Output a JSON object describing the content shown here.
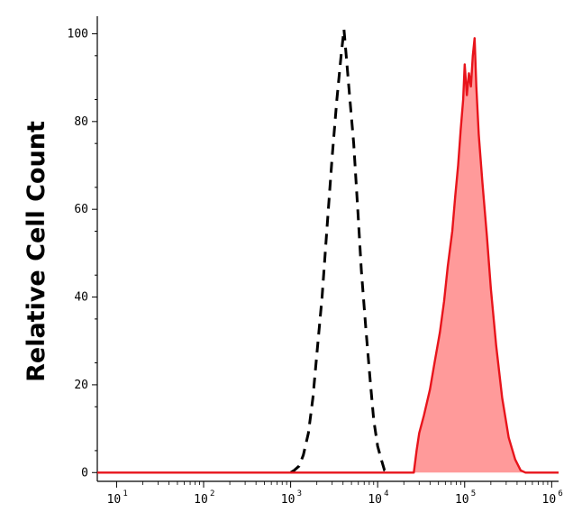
{
  "chart_data": {
    "type": "area",
    "title": "",
    "xlabel": "",
    "ylabel": "Relative Cell Count",
    "x_scale": "log",
    "xlim": [
      6,
      1200000
    ],
    "ylim": [
      -2,
      104
    ],
    "y_ticks": [
      0,
      20,
      40,
      60,
      80,
      100
    ],
    "x_ticks": [
      {
        "base": "10",
        "exp": "1",
        "value": 10
      },
      {
        "base": "10",
        "exp": "2",
        "value": 100
      },
      {
        "base": "10",
        "exp": "3",
        "value": 1000
      },
      {
        "base": "10",
        "exp": "4",
        "value": 10000
      },
      {
        "base": "10",
        "exp": "5",
        "value": 100000
      },
      {
        "base": "10",
        "exp": "6",
        "value": 1000000
      }
    ],
    "grid": false,
    "series": [
      {
        "style": "dashed",
        "color": "#000000",
        "fill": "none",
        "points": [
          [
            1000,
            0
          ],
          [
            1100,
            0.5
          ],
          [
            1250,
            1.5
          ],
          [
            1400,
            4
          ],
          [
            1600,
            9
          ],
          [
            1800,
            17
          ],
          [
            2000,
            27
          ],
          [
            2300,
            40
          ],
          [
            2600,
            55
          ],
          [
            3000,
            72
          ],
          [
            3400,
            85
          ],
          [
            3800,
            95
          ],
          [
            4100,
            101
          ],
          [
            4400,
            94
          ],
          [
            4800,
            85
          ],
          [
            5300,
            75
          ],
          [
            5900,
            60
          ],
          [
            6500,
            46
          ],
          [
            7300,
            33
          ],
          [
            8200,
            21
          ],
          [
            9000,
            12
          ],
          [
            10000,
            6
          ],
          [
            11000,
            3
          ],
          [
            12000,
            0.5
          ],
          [
            13000,
            0
          ]
        ]
      },
      {
        "style": "solid",
        "color": "#e8141b",
        "fill": "#ff9a9a",
        "points": [
          [
            26000,
            0
          ],
          [
            28000,
            5
          ],
          [
            30000,
            9
          ],
          [
            34000,
            13
          ],
          [
            40000,
            19
          ],
          [
            45000,
            25
          ],
          [
            52000,
            32
          ],
          [
            58000,
            39
          ],
          [
            64000,
            47
          ],
          [
            72000,
            55
          ],
          [
            78000,
            63
          ],
          [
            84000,
            70
          ],
          [
            90000,
            78
          ],
          [
            96000,
            85
          ],
          [
            100000,
            93
          ],
          [
            106000,
            86
          ],
          [
            112000,
            91
          ],
          [
            118000,
            88
          ],
          [
            124000,
            95
          ],
          [
            130000,
            99
          ],
          [
            136000,
            88
          ],
          [
            145000,
            77
          ],
          [
            160000,
            66
          ],
          [
            180000,
            54
          ],
          [
            200000,
            42
          ],
          [
            230000,
            29
          ],
          [
            270000,
            17
          ],
          [
            320000,
            8
          ],
          [
            380000,
            3
          ],
          [
            440000,
            0.5
          ],
          [
            500000,
            0
          ]
        ]
      }
    ]
  }
}
